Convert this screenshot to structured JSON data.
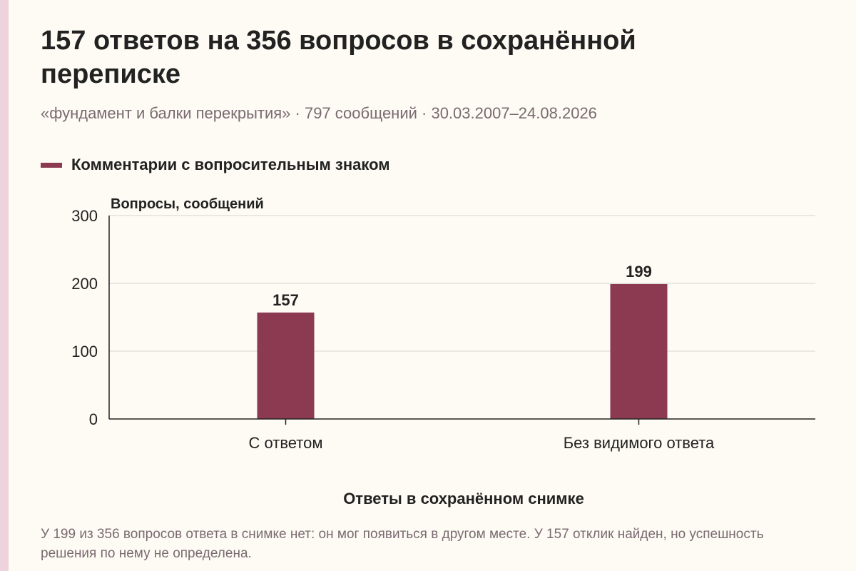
{
  "header": {
    "title": "157 ответов на 356 вопросов в сохранённой переписке",
    "subtitle": "«фундамент и балки перекрытия» · 797 сообщений · 30.03.2007–24.08.2026"
  },
  "legend": {
    "label": "Комментарии с вопросительным знаком",
    "color": "#8b3a52"
  },
  "footnote": "У 199 из 356 вопросов ответа в снимке нет: он мог появиться в другом месте. У 157 отклик найден, но успешность решения по нему не определена.",
  "chart_data": {
    "type": "bar",
    "title": "157 ответов на 356 вопросов в сохранённой переписке",
    "xlabel": "Ответы в сохранённом снимке",
    "ylabel": "Вопросы, сообщений",
    "categories": [
      "С ответом",
      "Без видимого ответа"
    ],
    "series": [
      {
        "name": "Комментарии с вопросительным знаком",
        "values": [
          157,
          199
        ],
        "color": "#8b3a52"
      }
    ],
    "ylim": [
      0,
      300
    ],
    "yticks": [
      0,
      100,
      200,
      300
    ],
    "grid": true,
    "legend_position": "top-left"
  }
}
